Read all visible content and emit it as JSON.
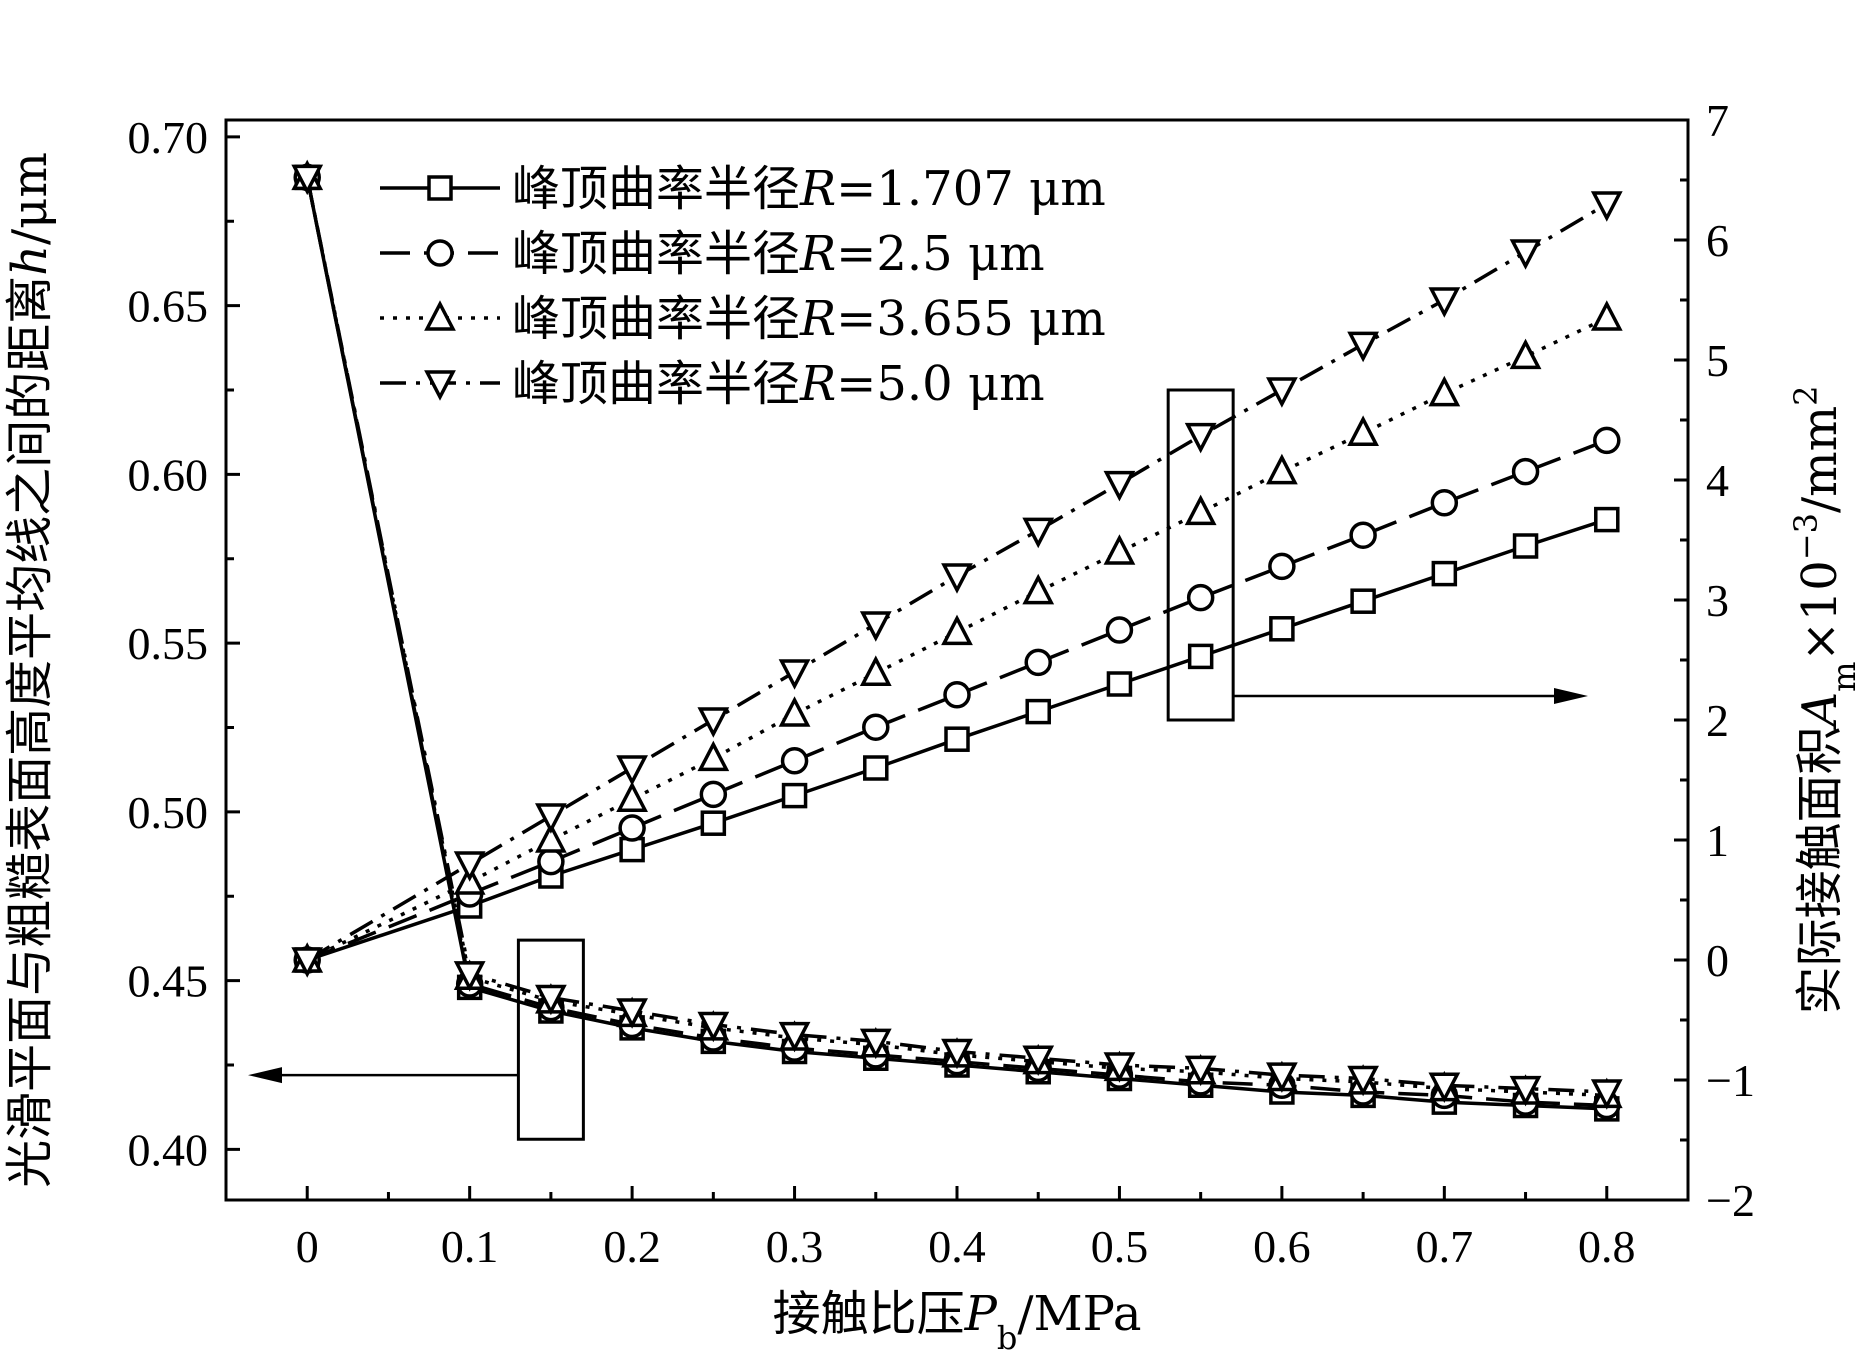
{
  "chart_data": {
    "type": "line",
    "xlabel": {
      "pre": "接触比压",
      "var": "P",
      "sub": "b",
      "post": "/MPa"
    },
    "ylabel_left": {
      "pre": "光滑平面与粗糙表面高度平均线之间的距离",
      "var": "h",
      "post": "/μm"
    },
    "ylabel_right": {
      "pre": "实际接触面积",
      "var": "A",
      "sub": "m",
      "mid": "×10",
      "sup": "−3",
      "post": "/mm",
      "sup2": "2"
    },
    "x_ticks": [
      "0",
      "0.1",
      "0.2",
      "0.3",
      "0.4",
      "0.5",
      "0.6",
      "0.7",
      "0.8"
    ],
    "y_left_ticks": [
      "0.40",
      "0.45",
      "0.50",
      "0.55",
      "0.60",
      "0.65",
      "0.70"
    ],
    "y_right_ticks": [
      "−2",
      "−1",
      "0",
      "1",
      "2",
      "3",
      "4",
      "5",
      "6",
      "7"
    ],
    "xlim": [
      -0.05,
      0.85
    ],
    "ylim_left": [
      0.385,
      0.705
    ],
    "ylim_right": [
      -2,
      7
    ],
    "x": [
      0,
      0.1,
      0.15,
      0.2,
      0.25,
      0.3,
      0.35,
      0.4,
      0.45,
      0.5,
      0.55,
      0.6,
      0.65,
      0.7,
      0.75,
      0.8
    ],
    "legend_labels": [
      {
        "pre": "峰顶曲率半径",
        "var": "R",
        "post": "=1.707 μm"
      },
      {
        "pre": "峰顶曲率半径",
        "var": "R",
        "post": "=2.5 μm"
      },
      {
        "pre": "峰顶曲率半径",
        "var": "R",
        "post": "=3.655 μm"
      },
      {
        "pre": "峰顶曲率半径",
        "var": "R",
        "post": "=5.0 μm"
      }
    ],
    "series": [
      {
        "marker": "square",
        "dash": "solid",
        "h_values": [
          0.688,
          0.448,
          0.441,
          0.436,
          0.432,
          0.429,
          0.427,
          0.425,
          0.423,
          0.421,
          0.419,
          0.417,
          0.416,
          0.414,
          0.413,
          0.412
        ],
        "area_values": [
          0,
          0.45,
          0.7,
          0.92,
          1.14,
          1.37,
          1.6,
          1.84,
          2.07,
          2.3,
          2.53,
          2.76,
          2.99,
          3.22,
          3.45,
          3.67
        ]
      },
      {
        "marker": "circle",
        "dash": "dashed",
        "h_values": [
          0.688,
          0.449,
          0.442,
          0.437,
          0.433,
          0.43,
          0.428,
          0.426,
          0.424,
          0.422,
          0.42,
          0.419,
          0.417,
          0.416,
          0.414,
          0.413
        ],
        "area_values": [
          0,
          0.55,
          0.82,
          1.1,
          1.38,
          1.66,
          1.94,
          2.21,
          2.48,
          2.75,
          3.02,
          3.28,
          3.54,
          3.81,
          4.07,
          4.33
        ]
      },
      {
        "marker": "triangle-up",
        "dash": "dotted",
        "h_values": [
          0.688,
          0.451,
          0.444,
          0.44,
          0.436,
          0.433,
          0.431,
          0.428,
          0.426,
          0.424,
          0.423,
          0.421,
          0.42,
          0.418,
          0.417,
          0.416
        ],
        "area_values": [
          0,
          0.65,
          1.0,
          1.34,
          1.68,
          2.05,
          2.39,
          2.73,
          3.07,
          3.4,
          3.73,
          4.07,
          4.39,
          4.72,
          5.03,
          5.35
        ]
      },
      {
        "marker": "triangle-down",
        "dash": "dashdot",
        "h_values": [
          0.688,
          0.452,
          0.445,
          0.441,
          0.437,
          0.434,
          0.432,
          0.429,
          0.427,
          0.425,
          0.424,
          0.422,
          0.421,
          0.419,
          0.418,
          0.417
        ],
        "area_values": [
          0,
          0.8,
          1.2,
          1.6,
          2.0,
          2.4,
          2.8,
          3.2,
          3.58,
          3.97,
          4.37,
          4.75,
          5.13,
          5.5,
          5.9,
          6.3
        ]
      }
    ],
    "grid": false,
    "legend_position": "top-left"
  }
}
